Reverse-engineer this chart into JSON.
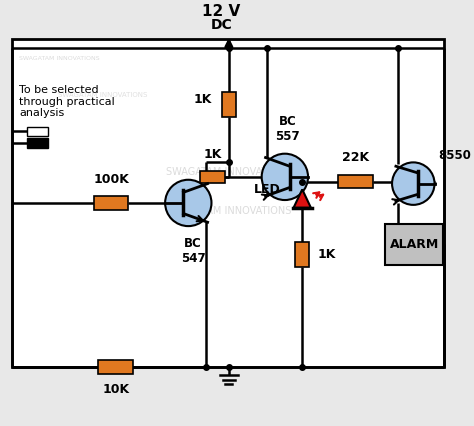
{
  "bg_color": "#e8e8e8",
  "border_color": "#000000",
  "wire_color": "#000000",
  "resistor_color": "#e07820",
  "transistor_fill": "#a8c8e8",
  "led_color": "#dd1111",
  "alarm_fill": "#c0c0c0",
  "title_12v": "12 V",
  "title_dc": "DC",
  "label_1k_top": "1K",
  "label_1k_mid": "1K",
  "label_1k_bot": "1K",
  "label_100k": "100K",
  "label_10k": "10K",
  "label_22k": "22K",
  "label_bc557": "BC\n557",
  "label_bc547": "BC\n547",
  "label_8550": "8550",
  "label_led": "LED",
  "label_alarm": "ALARM",
  "label_note": "To be selected\nthrough practical\nanalysis",
  "watermark1": "SWAGATAM INNOVATIONS",
  "watermark2": "SWAGATAM INNOVATIONS"
}
